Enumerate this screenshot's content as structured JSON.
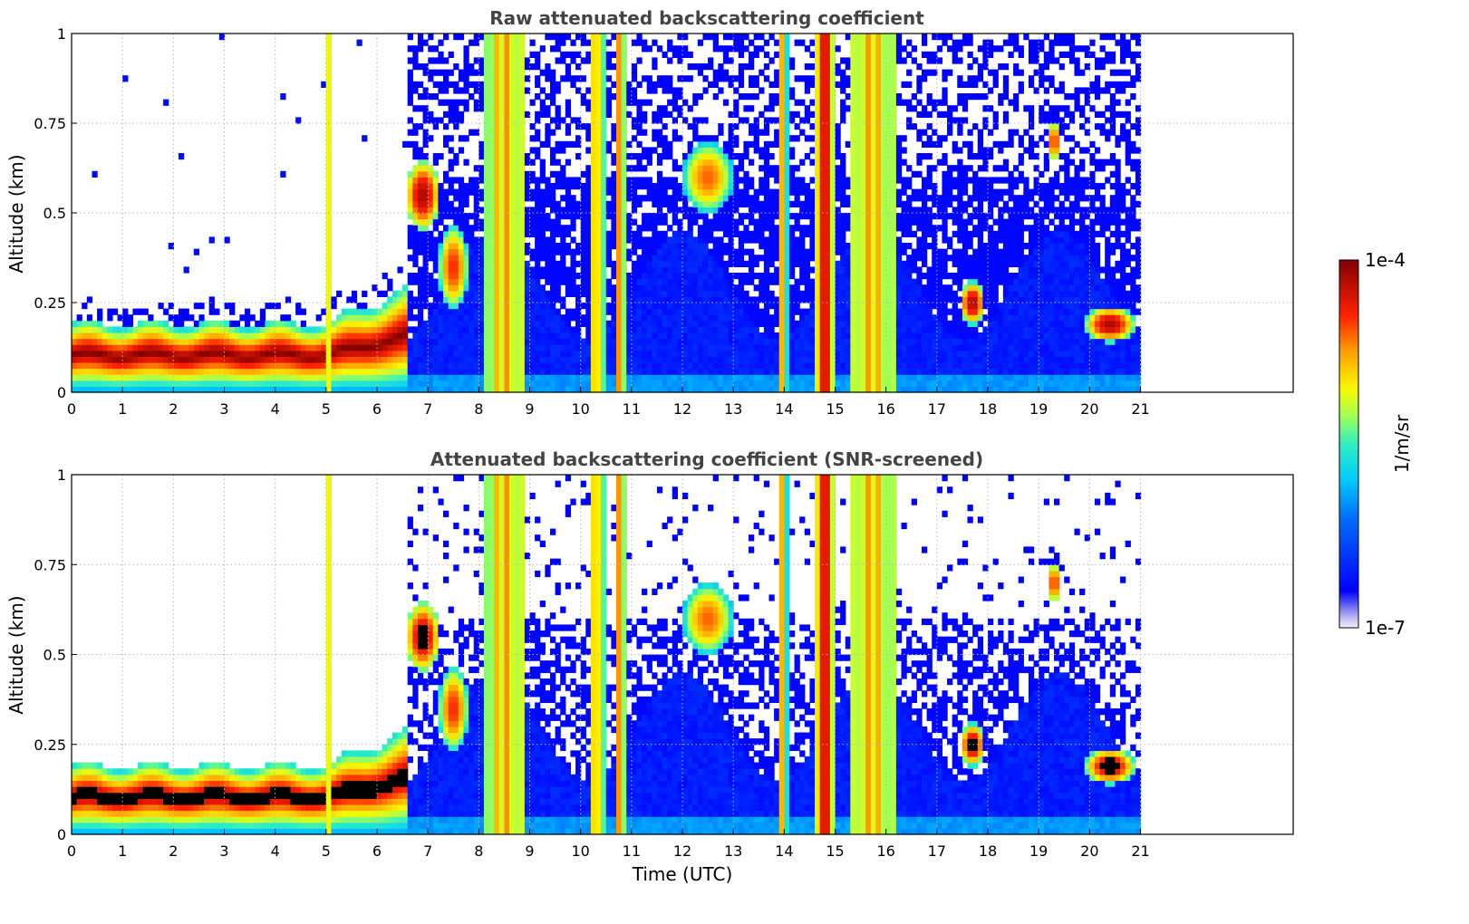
{
  "chart_data": [
    {
      "type": "heatmap",
      "title": "Raw attenuated backscattering coefficient",
      "xlabel": "",
      "ylabel": "Altitude (km)",
      "xlim": [
        0,
        24
      ],
      "ylim": [
        0,
        1
      ],
      "x_ticks": [
        "0",
        "1",
        "2",
        "3",
        "4",
        "5",
        "6",
        "7",
        "8",
        "9",
        "10",
        "11",
        "12",
        "13",
        "14",
        "15",
        "16",
        "17",
        "18",
        "19",
        "20",
        "21"
      ],
      "y_ticks": [
        "0",
        "0.25",
        "0.5",
        "0.75",
        "1"
      ],
      "grid": true,
      "data_end_hour": 21,
      "features": [
        {
          "name": "boundary-layer",
          "x": [
            0,
            6.6
          ],
          "alt_top": 0.19,
          "note": "dense aerosol layer near 0.05-0.15 km"
        },
        {
          "name": "cloud-bands",
          "x": [
            8.1,
            8.9
          ],
          "alt_top": 1.0
        },
        {
          "name": "cloud-bands",
          "x": [
            14.6,
            15.0
          ],
          "alt_top": 1.0
        },
        {
          "name": "cloud-bands",
          "x": [
            15.3,
            16.2
          ],
          "alt_top": 1.0
        },
        {
          "name": "low-cloud",
          "x": [
            17.4,
            18.0
          ],
          "alt": [
            0.15,
            0.3
          ]
        },
        {
          "name": "low-cloud",
          "x": [
            20.0,
            21.0
          ],
          "alt": [
            0.1,
            0.28
          ]
        }
      ]
    },
    {
      "type": "heatmap",
      "title": "Attenuated backscattering coefficient (SNR-screened)",
      "xlabel": "Time (UTC)",
      "ylabel": "Altitude (km)",
      "xlim": [
        0,
        24
      ],
      "ylim": [
        0,
        1
      ],
      "x_ticks": [
        "0",
        "1",
        "2",
        "3",
        "4",
        "5",
        "6",
        "7",
        "8",
        "9",
        "10",
        "11",
        "12",
        "13",
        "14",
        "15",
        "16",
        "17",
        "18",
        "19",
        "20",
        "21"
      ],
      "y_ticks": [
        "0",
        "0.25",
        "0.5",
        "0.75",
        "1"
      ],
      "grid": true,
      "data_end_hour": 21
    }
  ],
  "colorbar": {
    "max_label": "1e-4",
    "min_label": "1e-7",
    "unit_label": "1/m/sr",
    "colormap": "jet",
    "scale": "log"
  }
}
